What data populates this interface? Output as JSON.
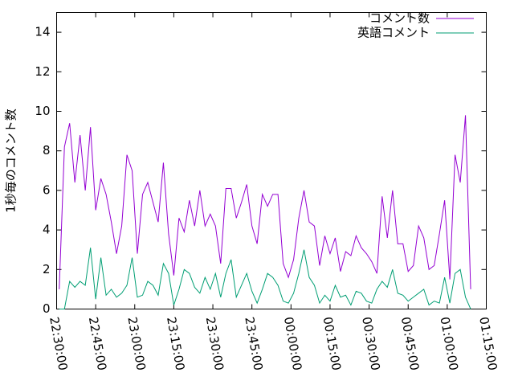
{
  "chart_data": {
    "type": "line",
    "ylabel": "1秒毎のコメント数",
    "x": [
      "22:31:00",
      "22:33:00",
      "22:35:00",
      "22:37:00",
      "22:39:00",
      "22:41:00",
      "22:43:00",
      "22:45:00",
      "22:47:00",
      "22:49:00",
      "22:51:00",
      "22:53:00",
      "22:55:00",
      "22:57:00",
      "22:59:00",
      "23:01:00",
      "23:03:00",
      "23:05:00",
      "23:07:00",
      "23:09:00",
      "23:11:00",
      "23:13:00",
      "23:15:00",
      "23:17:00",
      "23:19:00",
      "23:21:00",
      "23:23:00",
      "23:25:00",
      "23:27:00",
      "23:29:00",
      "23:31:00",
      "23:33:00",
      "23:35:00",
      "23:37:00",
      "23:39:00",
      "23:41:00",
      "23:43:00",
      "23:45:00",
      "23:47:00",
      "23:49:00",
      "23:51:00",
      "23:53:00",
      "23:55:00",
      "23:57:00",
      "23:59:00",
      "00:01:00",
      "00:03:00",
      "00:05:00",
      "00:07:00",
      "00:09:00",
      "00:11:00",
      "00:13:00",
      "00:15:00",
      "00:17:00",
      "00:19:00",
      "00:21:00",
      "00:23:00",
      "00:25:00",
      "00:27:00",
      "00:29:00",
      "00:31:00",
      "00:33:00",
      "00:35:00",
      "00:37:00",
      "00:39:00",
      "00:41:00",
      "00:43:00",
      "00:45:00",
      "00:47:00",
      "00:49:00",
      "00:51:00",
      "00:53:00",
      "00:55:00",
      "00:57:00",
      "00:59:00",
      "01:01:00",
      "01:03:00",
      "01:05:00",
      "01:07:00",
      "01:09:00"
    ],
    "series": [
      {
        "name": "コメント数",
        "color": "#9400d3",
        "values": [
          1,
          8.2,
          9.4,
          6.4,
          8.8,
          6.0,
          9.2,
          5.0,
          6.6,
          5.8,
          4.4,
          2.8,
          4.2,
          7.8,
          7.0,
          2.8,
          5.8,
          6.4,
          5.4,
          4.4,
          7.4,
          3.8,
          1.7,
          4.6,
          3.9,
          5.5,
          4.2,
          6.0,
          4.2,
          4.8,
          4.2,
          2.3,
          6.1,
          6.1,
          4.6,
          5.4,
          6.3,
          4.2,
          3.3,
          5.8,
          5.2,
          5.8,
          5.8,
          2.3,
          1.6,
          2.5,
          4.6,
          6.0,
          4.4,
          4.2,
          2.2,
          3.7,
          2.8,
          3.6,
          1.9,
          2.9,
          2.7,
          3.7,
          3.1,
          2.8,
          2.4,
          1.8,
          5.7,
          3.6,
          6.0,
          3.3,
          3.3,
          1.9,
          2.2,
          4.2,
          3.6,
          2.0,
          2.2,
          3.8,
          5.5,
          1.5,
          7.8,
          6.4,
          9.8,
          1.0
        ]
      },
      {
        "name": "英語コメント",
        "color": "#009e73",
        "values": [
          0,
          0,
          1.4,
          1.1,
          1.4,
          1.2,
          3.1,
          0.5,
          2.6,
          0.7,
          1.0,
          0.6,
          0.8,
          1.2,
          2.6,
          0.6,
          0.7,
          1.4,
          1.2,
          0.7,
          2.3,
          1.8,
          0.2,
          1.0,
          2.0,
          1.8,
          1.1,
          0.8,
          1.6,
          1.0,
          1.8,
          0.6,
          1.8,
          2.5,
          0.6,
          1.2,
          1.8,
          0.9,
          0.3,
          1.0,
          1.8,
          1.6,
          1.2,
          0.4,
          0.3,
          0.8,
          1.8,
          3.0,
          1.6,
          1.2,
          0.3,
          0.7,
          0.4,
          1.2,
          0.6,
          0.7,
          0.2,
          0.9,
          0.8,
          0.4,
          0.3,
          1.0,
          1.4,
          1.1,
          2.0,
          0.8,
          0.7,
          0.4,
          0.6,
          0.8,
          1.0,
          0.2,
          0.4,
          0.3,
          1.6,
          0.3,
          1.8,
          2.0,
          0.6,
          0
        ]
      }
    ],
    "xlim": [
      "22:30:00",
      "01:15:00"
    ],
    "xticks": [
      "22:30:00",
      "22:45:00",
      "23:00:00",
      "23:15:00",
      "23:30:00",
      "23:45:00",
      "00:00:00",
      "00:15:00",
      "00:30:00",
      "00:45:00",
      "01:00:00",
      "01:15:00"
    ],
    "ylim": [
      0,
      15
    ],
    "yticks": [
      0,
      2,
      4,
      6,
      8,
      10,
      12,
      14
    ],
    "legend": "top-right"
  }
}
